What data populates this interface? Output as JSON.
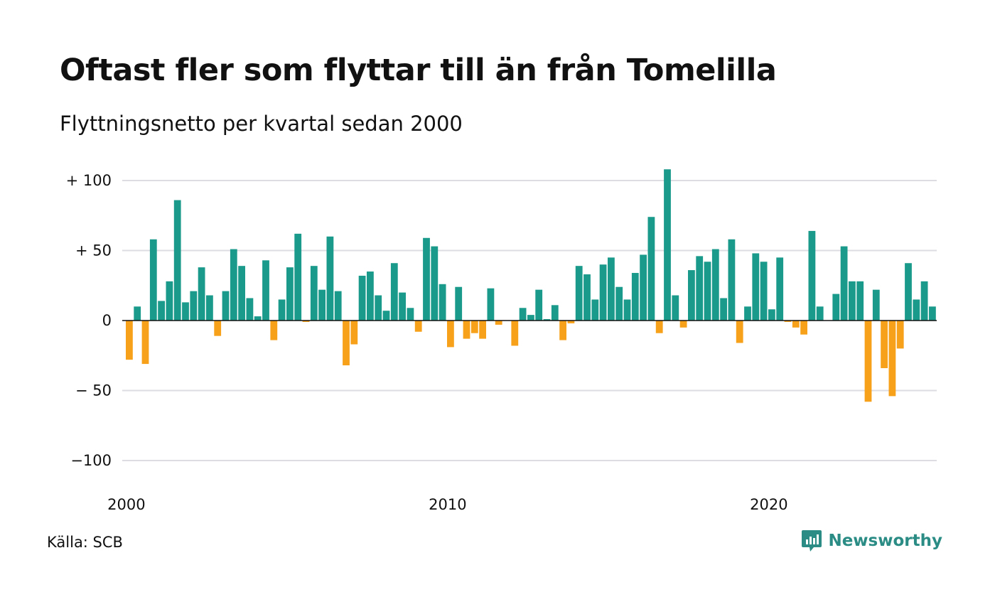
{
  "title": "Oftast fler som flyttar till än från Tomelilla",
  "subtitle": "Flyttningsnetto per kvartal sedan 2000",
  "source": "Källa: SCB",
  "brand": {
    "name": "Newsworthy",
    "icon": "newsworthy-logo-icon",
    "color": "#2a8c84"
  },
  "chart_data": {
    "type": "bar",
    "title": "Oftast fler som flyttar till än från Tomelilla",
    "subtitle": "Flyttningsnetto per kvartal sedan 2000",
    "xlabel": "",
    "ylabel": "",
    "x_start": "2000-Q1",
    "frequency": "quarterly",
    "xticks": [
      "2000",
      "2010",
      "2020"
    ],
    "yticks": [
      {
        "value": 100,
        "label": "+ 100"
      },
      {
        "value": 50,
        "label": "+  50"
      },
      {
        "value": 0,
        "label": "0"
      },
      {
        "value": -50,
        "label": "− 50"
      },
      {
        "value": -100,
        "label": "−100"
      }
    ],
    "ylim": [
      -110,
      110
    ],
    "grid": true,
    "colors": {
      "positive": "#1a9a8a",
      "negative": "#f7a11a"
    },
    "values": [
      -28,
      10,
      -31,
      58,
      14,
      28,
      86,
      13,
      21,
      38,
      18,
      -11,
      21,
      51,
      39,
      16,
      3,
      43,
      -14,
      15,
      38,
      62,
      -1,
      39,
      22,
      60,
      21,
      -32,
      -17,
      32,
      35,
      18,
      7,
      41,
      20,
      9,
      -8,
      59,
      53,
      26,
      -19,
      24,
      -13,
      -9,
      -13,
      23,
      -3,
      0,
      -18,
      9,
      4,
      22,
      1,
      11,
      -14,
      -2,
      39,
      33,
      15,
      40,
      45,
      24,
      15,
      34,
      47,
      74,
      -9,
      108,
      18,
      -5,
      36,
      46,
      42,
      51,
      16,
      58,
      -16,
      10,
      48,
      42,
      8,
      45,
      -1,
      -5,
      -10,
      64,
      10,
      0,
      19,
      53,
      28,
      28,
      -58,
      22,
      -34,
      -54,
      -20,
      41,
      15,
      28,
      10
    ]
  }
}
